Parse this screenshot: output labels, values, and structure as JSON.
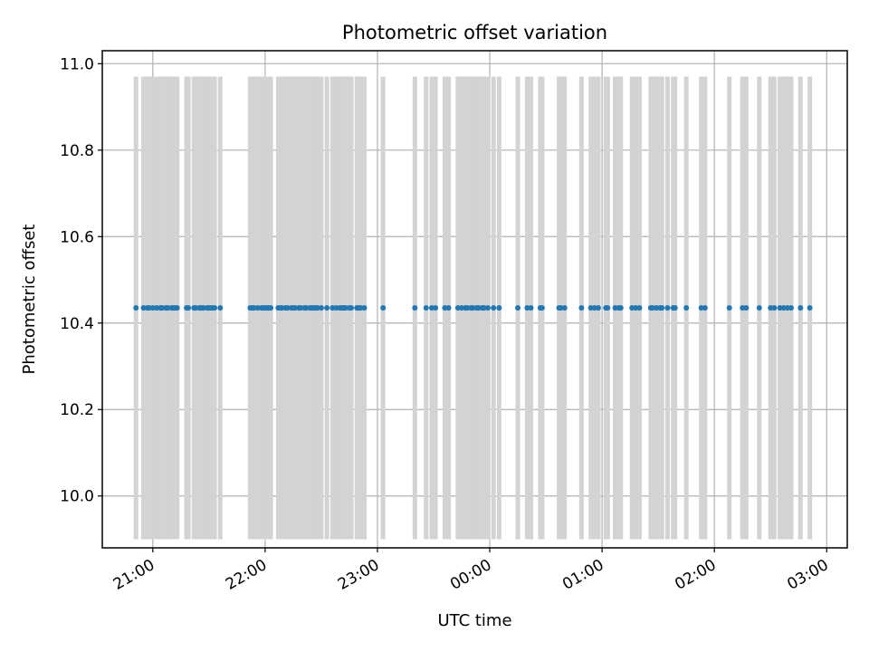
{
  "chart_data": {
    "type": "scatter",
    "title": "Photometric offset variation",
    "xlabel": "UTC time",
    "ylabel": "Photometric offset",
    "x_axis_type": "time",
    "x_range": [
      "20:33",
      "03:11"
    ],
    "ylim": [
      9.88,
      11.03
    ],
    "grid": true,
    "x_ticks": [
      "21:00",
      "22:00",
      "23:00",
      "00:00",
      "01:00",
      "02:00",
      "03:00"
    ],
    "y_ticks": [
      "10.0",
      "10.2",
      "10.4",
      "10.6",
      "10.8",
      "11.0"
    ],
    "colors": {
      "points": "#1f77b4",
      "error_bars": "#d3d3d3",
      "grid": "#b0b0b0"
    },
    "series": [
      {
        "error_bar_range": [
          9.9,
          10.97
        ],
        "y_value": 10.435,
        "x": [
          "20:51",
          "20:55",
          "20:57",
          "20:58",
          "21:00",
          "21:02",
          "21:04",
          "21:05",
          "21:07",
          "21:08",
          "21:10",
          "21:11",
          "21:12",
          "21:13",
          "21:18",
          "21:19",
          "21:22",
          "21:23",
          "21:25",
          "21:26",
          "21:27",
          "21:29",
          "21:30",
          "21:31",
          "21:32",
          "21:33",
          "21:36",
          "21:52",
          "21:53",
          "21:54",
          "21:56",
          "21:58",
          "21:59",
          "22:00",
          "22:01",
          "22:02",
          "22:03",
          "22:07",
          "22:08",
          "22:09",
          "22:11",
          "22:12",
          "22:14",
          "22:15",
          "22:16",
          "22:18",
          "22:19",
          "22:21",
          "22:22",
          "22:24",
          "22:25",
          "22:26",
          "22:27",
          "22:28",
          "22:30",
          "22:33",
          "22:36",
          "22:38",
          "22:40",
          "22:41",
          "22:42",
          "22:43",
          "22:45",
          "22:46",
          "22:49",
          "22:50",
          "22:51",
          "22:53",
          "23:03",
          "23:20",
          "23:26",
          "23:29",
          "23:31",
          "23:36",
          "23:38",
          "23:43",
          "23:45",
          "23:47",
          "23:48",
          "23:50",
          "23:51",
          "23:53",
          "23:54",
          "23:56",
          "23:57",
          "23:59",
          "00:02",
          "00:05",
          "00:15",
          "00:20",
          "00:22",
          "00:27",
          "00:28",
          "00:37",
          "00:38",
          "00:40",
          "00:49",
          "00:54",
          "00:56",
          "00:58",
          "01:02",
          "01:03",
          "01:07",
          "01:09",
          "01:10",
          "01:16",
          "01:18",
          "01:20",
          "01:26",
          "01:27",
          "01:29",
          "01:31",
          "01:32",
          "01:35",
          "01:38",
          "01:39",
          "01:45",
          "01:53",
          "01:55",
          "02:08",
          "02:15",
          "02:17",
          "02:24",
          "02:30",
          "02:32",
          "02:35",
          "02:37",
          "02:39",
          "02:41",
          "02:46",
          "02:51"
        ]
      }
    ]
  }
}
